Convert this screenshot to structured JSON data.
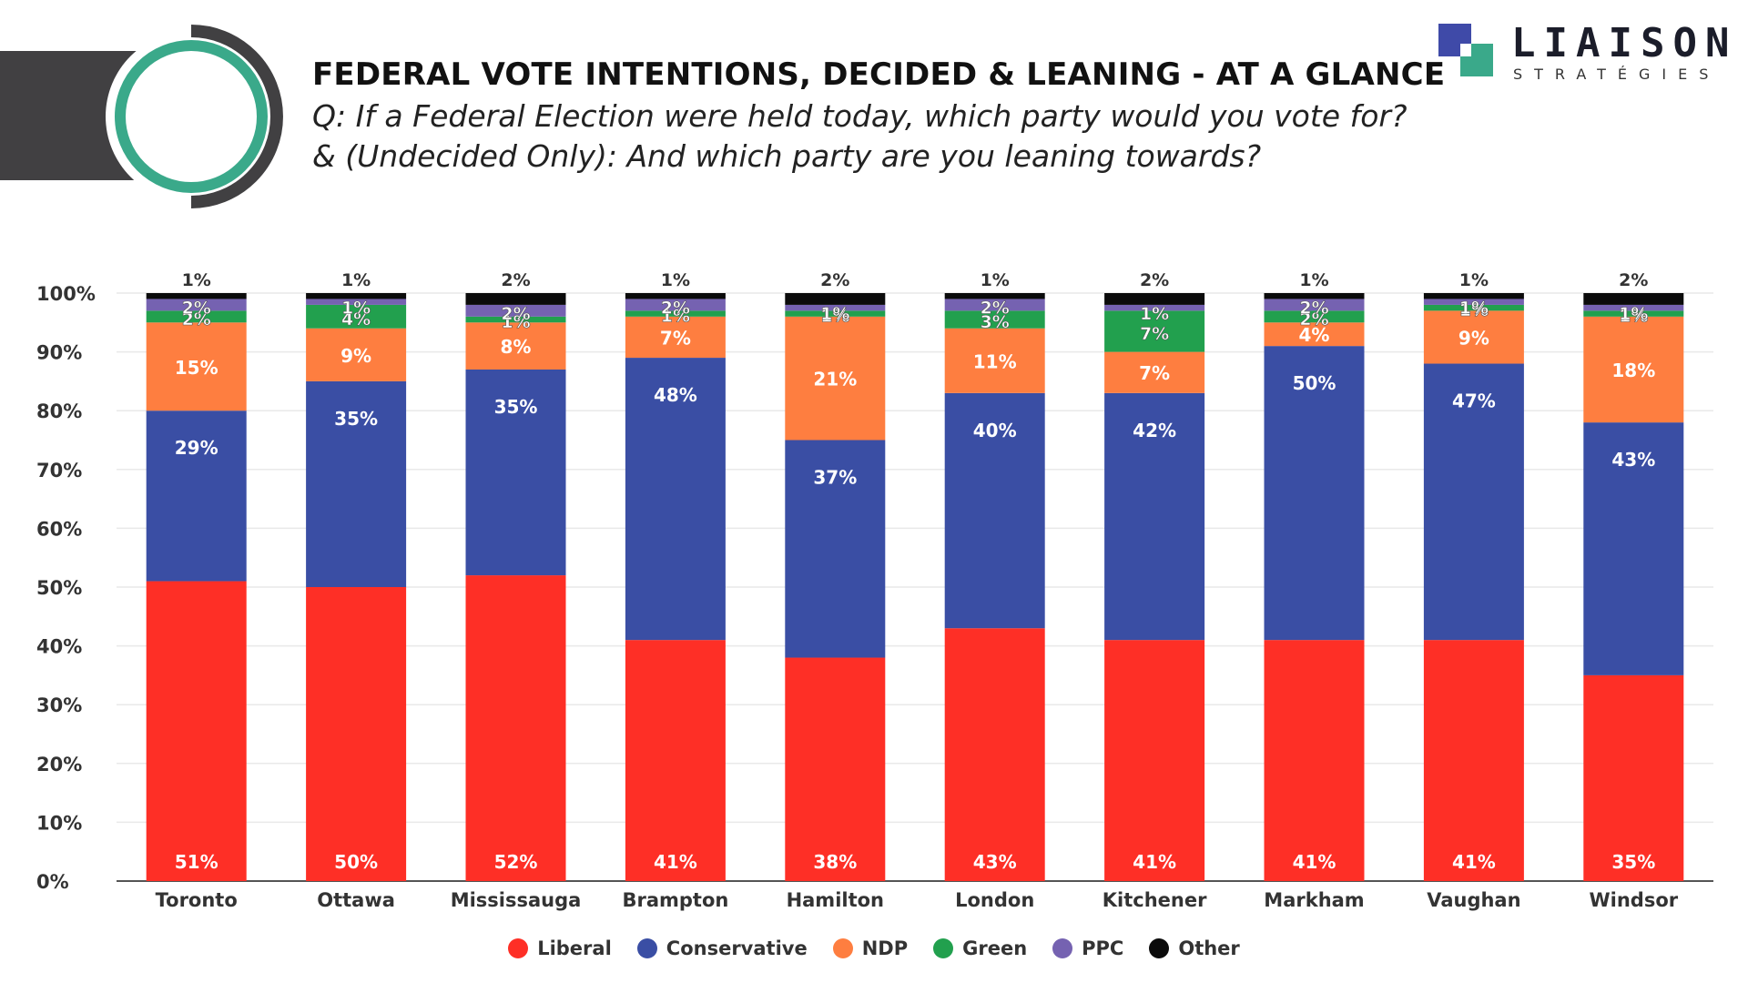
{
  "header": {
    "title": "FEDERAL VOTE INTENTIONS, DECIDED & LEANING - AT A GLANCE",
    "subtitle_line1": "Q: If a Federal Election were held today, which party would you vote for?",
    "subtitle_line2": "& (Undecided Only): And which party are you leaning towards?"
  },
  "logo": {
    "name": "LIAISON",
    "tagline": "STRATÉGIES"
  },
  "colors": {
    "Liberal": "#fe2f26",
    "Conservative": "#3a4ea4",
    "NDP": "#fe7e40",
    "Green": "#22a04e",
    "PPC": "#7562b1",
    "Other": "#0b0b0b"
  },
  "chart_data": {
    "type": "bar",
    "stacked": true,
    "title": "FEDERAL VOTE INTENTIONS, DECIDED & LEANING - AT A GLANCE",
    "xlabel": "",
    "ylabel": "",
    "ylim": [
      0,
      100
    ],
    "yticks": [
      "0%",
      "10%",
      "20%",
      "30%",
      "40%",
      "50%",
      "60%",
      "70%",
      "80%",
      "90%",
      "100%"
    ],
    "grid": true,
    "legend_position": "bottom",
    "categories": [
      "Toronto",
      "Ottawa",
      "Mississauga",
      "Brampton",
      "Hamilton",
      "London",
      "Kitchener",
      "Markham",
      "Vaughan",
      "Windsor"
    ],
    "series": [
      {
        "name": "Liberal",
        "values": [
          51,
          50,
          52,
          41,
          38,
          43,
          41,
          41,
          41,
          35
        ]
      },
      {
        "name": "Conservative",
        "values": [
          29,
          35,
          35,
          48,
          37,
          40,
          42,
          50,
          47,
          43
        ]
      },
      {
        "name": "NDP",
        "values": [
          15,
          9,
          8,
          7,
          21,
          11,
          7,
          4,
          9,
          18
        ]
      },
      {
        "name": "Green",
        "values": [
          2,
          4,
          1,
          1,
          1,
          3,
          7,
          2,
          1,
          1
        ]
      },
      {
        "name": "PPC",
        "values": [
          2,
          1,
          2,
          2,
          1,
          2,
          1,
          2,
          1,
          1
        ]
      },
      {
        "name": "Other",
        "values": [
          1,
          1,
          2,
          1,
          2,
          1,
          2,
          1,
          1,
          2
        ]
      }
    ]
  }
}
